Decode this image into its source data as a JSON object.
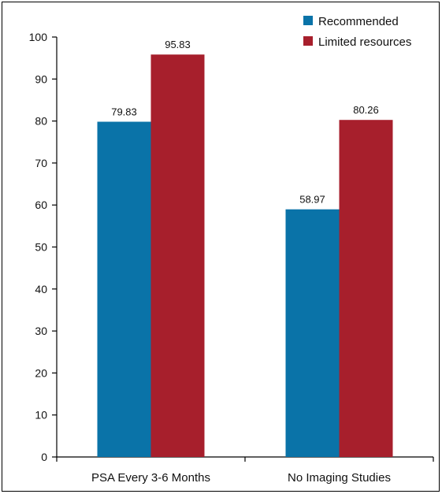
{
  "chart_data": {
    "type": "bar",
    "categories": [
      "PSA Every 3-6 Months",
      "No Imaging Studies"
    ],
    "series": [
      {
        "name": "Recommended",
        "color": "#0a73a8",
        "values": [
          79.83,
          58.97
        ]
      },
      {
        "name": "Limited resources",
        "color": "#a71f2c",
        "values": [
          95.83,
          80.26
        ]
      }
    ],
    "data_labels": [
      [
        "79.83",
        "58.97"
      ],
      [
        "95.83",
        "80.26"
      ]
    ],
    "ylim": [
      0,
      100
    ],
    "yticks": [
      0,
      10,
      20,
      30,
      40,
      50,
      60,
      70,
      80,
      90,
      100
    ],
    "grid": false,
    "legend_position": "top-right",
    "title": "",
    "xlabel": "",
    "ylabel": ""
  }
}
